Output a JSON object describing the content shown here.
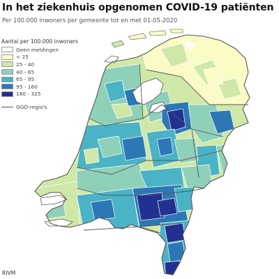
{
  "title": "In het ziekenhuis opgenomen COVID-19 patiënten",
  "subtitle": "Per 100.000 inwoners per gemeente tot en met 01-05-2020",
  "legend": {
    "title": "Aantal per 100.000 inwoners",
    "items": [
      {
        "label": "Geen meldingen",
        "color": "#ffffff"
      },
      {
        "label": "< 25",
        "color": "#fbfbc6"
      },
      {
        "label": "25 - 40",
        "color": "#cfe8a8"
      },
      {
        "label": "40 - 65",
        "color": "#8fd0b9"
      },
      {
        "label": "65 - 95",
        "color": "#4ab3c6"
      },
      {
        "label": "95 - 160",
        "color": "#2b78b5"
      },
      {
        "label": "160 - 325",
        "color": "#22308f"
      }
    ],
    "boundary_label": "GGD-regio's"
  },
  "colors": {
    "water": "#ffffff",
    "boundary": "#555555",
    "municipality_border": "#ffffff"
  },
  "source": "RIVM"
}
